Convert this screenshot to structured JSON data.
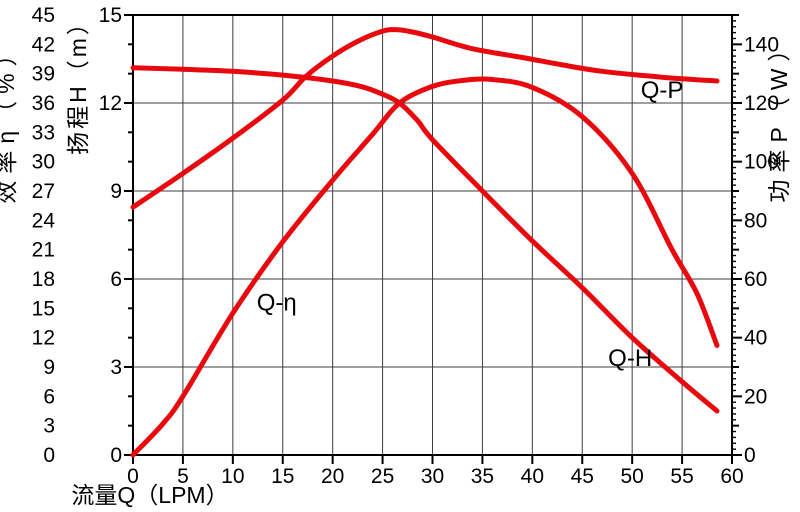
{
  "chart_data": {
    "type": "line",
    "title": "",
    "legend_position": "none",
    "grid": true,
    "colors": {
      "curve": "#e8090f",
      "grid": "#3d3d3d",
      "axis": "#000000",
      "text": "#000000",
      "background": "#ffffff"
    },
    "axes": {
      "flow": {
        "label": "流量Q（LPM）",
        "range": [
          0,
          60
        ],
        "tick_step": 5,
        "tick_labels": [
          0,
          5,
          10,
          15,
          20,
          25,
          30,
          35,
          40,
          45,
          50,
          55,
          60
        ]
      },
      "head": {
        "label": "扬程H（m）",
        "range": [
          0,
          15
        ],
        "tick_step": 3,
        "minor_step": 1,
        "tick_labels": [
          0,
          3,
          6,
          9,
          12,
          15
        ]
      },
      "efficiency": {
        "label": "效率η（%）",
        "range": [
          0,
          45
        ],
        "tick_step": 3,
        "tick_labels": [
          0,
          3,
          6,
          9,
          12,
          15,
          18,
          21,
          24,
          27,
          30,
          33,
          36,
          39,
          42,
          45
        ]
      },
      "power": {
        "label": "功率P（W）",
        "range": [
          0,
          150
        ],
        "tick_step": 20,
        "medium_step": 10,
        "minor_step": 2,
        "tick_labels": [
          0,
          20,
          40,
          60,
          80,
          100,
          120,
          140
        ]
      }
    },
    "gridlines": {
      "vertical_flow": [
        5,
        10,
        15,
        20,
        25,
        30,
        35,
        40,
        45,
        50,
        55
      ],
      "horizontal_head": [
        3,
        6,
        9,
        12
      ]
    },
    "series": [
      {
        "name": "Q-H",
        "axis": "head",
        "label": {
          "text": "Q-H",
          "q": 49.8,
          "v": 3.3
        },
        "points": [
          [
            0,
            13.2
          ],
          [
            5,
            13.15
          ],
          [
            10,
            13.08
          ],
          [
            15,
            12.95
          ],
          [
            20,
            12.75
          ],
          [
            23,
            12.55
          ],
          [
            25,
            12.3
          ],
          [
            26.7,
            12.0
          ],
          [
            28.5,
            11.4
          ],
          [
            30,
            10.75
          ],
          [
            35,
            9.0
          ],
          [
            40,
            7.3
          ],
          [
            45,
            5.7
          ],
          [
            50,
            4.0
          ],
          [
            55,
            2.5
          ],
          [
            58.5,
            1.5
          ]
        ]
      },
      {
        "name": "Q-η",
        "axis": "efficiency",
        "label": {
          "text": "Q-η",
          "q": 14.4,
          "v": 15.6
        },
        "points": [
          [
            0,
            0
          ],
          [
            3,
            3.2
          ],
          [
            5,
            6
          ],
          [
            10,
            14.5
          ],
          [
            15,
            21.8
          ],
          [
            20,
            28.1
          ],
          [
            24,
            32.8
          ],
          [
            26.7,
            36.0
          ],
          [
            30,
            37.7
          ],
          [
            33,
            38.3
          ],
          [
            36,
            38.4
          ],
          [
            40,
            37.6
          ],
          [
            45,
            34.6
          ],
          [
            50,
            28.8
          ],
          [
            54,
            21.0
          ],
          [
            56.5,
            16.5
          ],
          [
            58.5,
            11.2
          ]
        ]
      },
      {
        "name": "Q-P",
        "axis": "power",
        "label": {
          "text": "Q-P",
          "q": 53.0,
          "v": 124.4
        },
        "points": [
          [
            0,
            84.5
          ],
          [
            5,
            96
          ],
          [
            10,
            108
          ],
          [
            15,
            121
          ],
          [
            17.3,
            129
          ],
          [
            20,
            136
          ],
          [
            22.5,
            141
          ],
          [
            25,
            144.5
          ],
          [
            26.5,
            145
          ],
          [
            28,
            144.2
          ],
          [
            30,
            142.5
          ],
          [
            34,
            138.5
          ],
          [
            39,
            135.5
          ],
          [
            43,
            133
          ],
          [
            47,
            130.8
          ],
          [
            53,
            128.8
          ],
          [
            58.5,
            127.5
          ]
        ]
      }
    ]
  }
}
